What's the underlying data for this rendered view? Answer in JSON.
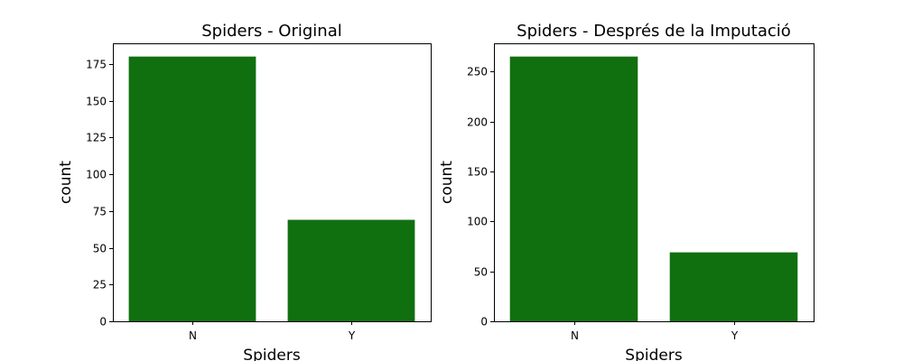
{
  "chart_data": [
    {
      "type": "bar",
      "title": "Spiders - Original",
      "xlabel": "Spiders",
      "ylabel": "count",
      "categories": [
        "N",
        "Y"
      ],
      "values": [
        180,
        69
      ],
      "ylim": [
        0,
        189
      ],
      "yticks": [
        0,
        25,
        50,
        75,
        100,
        125,
        150,
        175
      ],
      "bar_color": "#107010",
      "grid": false
    },
    {
      "type": "bar",
      "title": "Spiders - Després de la Imputació",
      "xlabel": "Spiders",
      "ylabel": "count",
      "categories": [
        "N",
        "Y"
      ],
      "values": [
        265,
        69
      ],
      "ylim": [
        0,
        278.25
      ],
      "yticks": [
        0,
        50,
        100,
        150,
        200,
        250
      ],
      "bar_color": "#107010",
      "grid": false
    }
  ]
}
